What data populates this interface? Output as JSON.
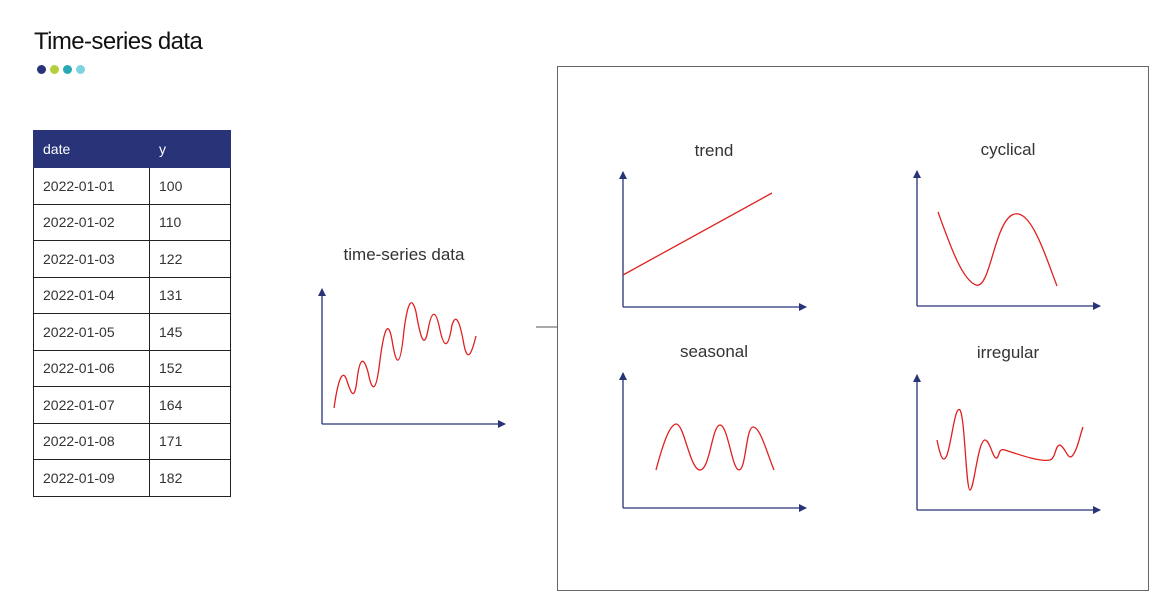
{
  "page_title": "Time-series data",
  "dots": [
    "#283378",
    "#b4cf3a",
    "#27aab5",
    "#7fd2e0"
  ],
  "table": {
    "headers": [
      "date",
      "y"
    ],
    "rows": [
      [
        "2022-01-01",
        "100"
      ],
      [
        "2022-01-02",
        "110"
      ],
      [
        "2022-01-03",
        "122"
      ],
      [
        "2022-01-04",
        "131"
      ],
      [
        "2022-01-05",
        "145"
      ],
      [
        "2022-01-06",
        "152"
      ],
      [
        "2022-01-07",
        "164"
      ],
      [
        "2022-01-08",
        "171"
      ],
      [
        "2022-01-09",
        "182"
      ]
    ]
  },
  "main_chart": {
    "label": "time-series data"
  },
  "components": [
    {
      "label": "trend"
    },
    {
      "label": "cyclical"
    },
    {
      "label": "seasonal"
    },
    {
      "label": "irregular"
    }
  ],
  "colors": {
    "axis": "#283378",
    "curve": "#e02020",
    "header_bg": "#283378"
  }
}
